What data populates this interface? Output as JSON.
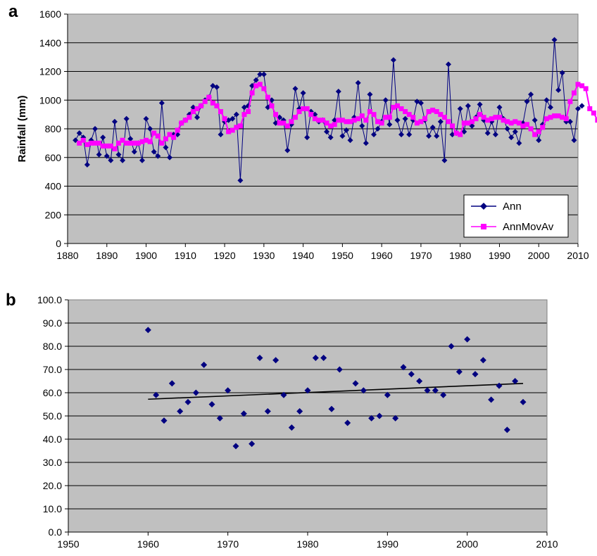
{
  "colors": {
    "plot_background": "#C0C0C0",
    "gridline": "#000000",
    "ann_series": "#000080",
    "movav_series": "#FF00FF",
    "trendline": "#000000"
  },
  "chart_data": [
    {
      "panel_label": "a",
      "type": "line",
      "xlabel": "",
      "ylabel": "Rainfall (mm)",
      "xlim": [
        1880,
        2010
      ],
      "ylim": [
        0,
        1600
      ],
      "xticks": [
        1880,
        1890,
        1900,
        1910,
        1920,
        1930,
        1940,
        1950,
        1960,
        1970,
        1980,
        1990,
        2000,
        2010
      ],
      "yticks": [
        0,
        200,
        400,
        600,
        800,
        1000,
        1200,
        1400,
        1600
      ],
      "grid": "horizontal",
      "legend_position": "bottom-right",
      "series": [
        {
          "name": "Ann",
          "marker": "diamond",
          "x_start": 1882,
          "values": [
            720,
            770,
            740,
            550,
            720,
            800,
            620,
            740,
            610,
            580,
            850,
            620,
            580,
            870,
            730,
            640,
            700,
            580,
            870,
            800,
            640,
            610,
            980,
            670,
            600,
            760,
            760,
            840,
            860,
            900,
            950,
            880,
            960,
            1000,
            1020,
            1100,
            1090,
            760,
            850,
            860,
            870,
            900,
            440,
            950,
            960,
            1100,
            1140,
            1180,
            1180,
            950,
            1000,
            840,
            880,
            860,
            650,
            830,
            1080,
            940,
            1050,
            740,
            920,
            900,
            850,
            860,
            780,
            740,
            860,
            1060,
            750,
            790,
            720,
            880,
            1120,
            820,
            700,
            1040,
            760,
            800,
            850,
            1000,
            830,
            1280,
            860,
            760,
            870,
            760,
            860,
            990,
            980,
            860,
            750,
            810,
            750,
            850,
            580,
            1250,
            760,
            770,
            940,
            780,
            960,
            820,
            880,
            970,
            860,
            770,
            850,
            760,
            950,
            870,
            800,
            740,
            780,
            700,
            840,
            990,
            1040,
            860,
            720,
            830,
            1000,
            950,
            1420,
            1070,
            1190,
            850,
            850,
            720,
            940,
            960
          ]
        },
        {
          "name": "AnnMovAv",
          "marker": "square",
          "x_start": 1883,
          "values": [
            700,
            720,
            690,
            700,
            700,
            700,
            680,
            680,
            680,
            660,
            700,
            720,
            700,
            700,
            700,
            700,
            710,
            720,
            710,
            770,
            750,
            700,
            730,
            760,
            740,
            790,
            840,
            860,
            880,
            920,
            940,
            960,
            990,
            1020,
            980,
            960,
            920,
            870,
            780,
            790,
            810,
            820,
            900,
            920,
            1050,
            1100,
            1110,
            1080,
            1020,
            960,
            900,
            840,
            840,
            820,
            850,
            880,
            920,
            940,
            940,
            900,
            870,
            860,
            860,
            840,
            820,
            830,
            860,
            860,
            850,
            850,
            860,
            870,
            890,
            860,
            920,
            900,
            850,
            840,
            880,
            880,
            950,
            960,
            940,
            920,
            900,
            880,
            840,
            850,
            870,
            920,
            930,
            920,
            900,
            880,
            850,
            820,
            770,
            760,
            840,
            840,
            850,
            870,
            900,
            880,
            860,
            870,
            880,
            880,
            860,
            850,
            840,
            850,
            840,
            820,
            830,
            800,
            760,
            780,
            810,
            870,
            880,
            890,
            890,
            880,
            870,
            990,
            1050,
            1110,
            1100,
            1080,
            940,
            910,
            860
          ]
        }
      ]
    },
    {
      "panel_label": "b",
      "type": "scatter",
      "xlabel": "",
      "ylabel": "",
      "xlim": [
        1950,
        2010
      ],
      "ylim": [
        0,
        100
      ],
      "xticks": [
        1950,
        1960,
        1970,
        1980,
        1990,
        2000,
        2010
      ],
      "yticks": [
        "0.0",
        "10.0",
        "20.0",
        "30.0",
        "40.0",
        "50.0",
        "60.0",
        "70.0",
        "80.0",
        "90.0",
        "100.0"
      ],
      "grid": "horizontal",
      "legend_position": "none",
      "points": [
        [
          1960,
          87
        ],
        [
          1961,
          59
        ],
        [
          1962,
          48
        ],
        [
          1963,
          64
        ],
        [
          1964,
          52
        ],
        [
          1965,
          56
        ],
        [
          1966,
          60
        ],
        [
          1967,
          72
        ],
        [
          1968,
          55
        ],
        [
          1969,
          49
        ],
        [
          1970,
          61
        ],
        [
          1971,
          37
        ],
        [
          1972,
          51
        ],
        [
          1973,
          38
        ],
        [
          1974,
          75
        ],
        [
          1975,
          52
        ],
        [
          1976,
          74
        ],
        [
          1977,
          59
        ],
        [
          1978,
          45
        ],
        [
          1979,
          52
        ],
        [
          1980,
          61
        ],
        [
          1981,
          75
        ],
        [
          1982,
          75
        ],
        [
          1983,
          53
        ],
        [
          1984,
          70
        ],
        [
          1985,
          47
        ],
        [
          1986,
          64
        ],
        [
          1987,
          61
        ],
        [
          1988,
          49
        ],
        [
          1989,
          50
        ],
        [
          1990,
          59
        ],
        [
          1991,
          49
        ],
        [
          1992,
          71
        ],
        [
          1993,
          68
        ],
        [
          1994,
          65
        ],
        [
          1995,
          61
        ],
        [
          1996,
          61
        ],
        [
          1997,
          59
        ],
        [
          1998,
          80
        ],
        [
          1999,
          69
        ],
        [
          2000,
          83
        ],
        [
          2001,
          68
        ],
        [
          2002,
          74
        ],
        [
          2003,
          57
        ],
        [
          2004,
          63
        ],
        [
          2005,
          44
        ],
        [
          2006,
          65
        ],
        [
          2007,
          56
        ]
      ],
      "trendline": {
        "x": [
          1960,
          2007
        ],
        "y": [
          57.2,
          64
        ]
      }
    }
  ]
}
